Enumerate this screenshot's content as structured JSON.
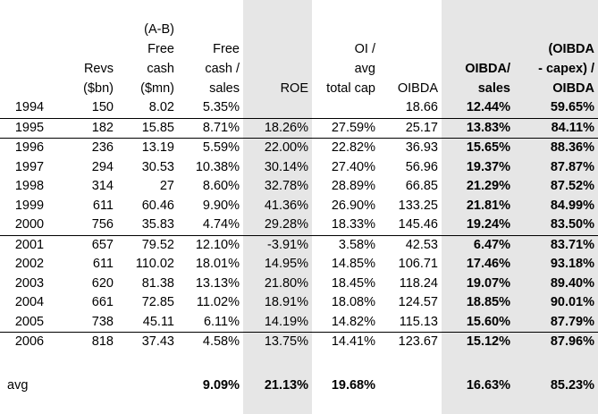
{
  "headers": {
    "year": "",
    "revs": [
      "Revs",
      "($bn)"
    ],
    "free_cash": [
      "(A-B)",
      "Free",
      "cash",
      "($mn)"
    ],
    "free_cash_sales": [
      "Free",
      "cash /",
      "sales"
    ],
    "roe": [
      "ROE"
    ],
    "oi_avg_total_cap": [
      "OI /",
      "avg",
      "total cap"
    ],
    "oibda": [
      "OIBDA"
    ],
    "oibda_sales": [
      "OIBDA/",
      "sales"
    ],
    "oibda_capex": [
      "(OIBDA",
      "- capex) /",
      "OIBDA"
    ]
  },
  "rows": [
    {
      "year": "1994",
      "revs": "150",
      "fc": "8.02",
      "fcs": "5.35%",
      "roe": "",
      "oi": "",
      "oibda": "18.66",
      "os": "12.44%",
      "capex": "59.65%"
    },
    {
      "year": "1995",
      "revs": "182",
      "fc": "15.85",
      "fcs": "8.71%",
      "roe": "18.26%",
      "oi": "27.59%",
      "oibda": "25.17",
      "os": "13.83%",
      "capex": "84.11%"
    },
    {
      "year": "1996",
      "revs": "236",
      "fc": "13.19",
      "fcs": "5.59%",
      "roe": "22.00%",
      "oi": "22.82%",
      "oibda": "36.93",
      "os": "15.65%",
      "capex": "88.36%"
    },
    {
      "year": "1997",
      "revs": "294",
      "fc": "30.53",
      "fcs": "10.38%",
      "roe": "30.14%",
      "oi": "27.40%",
      "oibda": "56.96",
      "os": "19.37%",
      "capex": "87.87%"
    },
    {
      "year": "1998",
      "revs": "314",
      "fc": "27",
      "fcs": "8.60%",
      "roe": "32.78%",
      "oi": "28.89%",
      "oibda": "66.85",
      "os": "21.29%",
      "capex": "87.52%"
    },
    {
      "year": "1999",
      "revs": "611",
      "fc": "60.46",
      "fcs": "9.90%",
      "roe": "41.36%",
      "oi": "26.90%",
      "oibda": "133.25",
      "os": "21.81%",
      "capex": "84.99%"
    },
    {
      "year": "2000",
      "revs": "756",
      "fc": "35.83",
      "fcs": "4.74%",
      "roe": "29.28%",
      "oi": "18.33%",
      "oibda": "145.46",
      "os": "19.24%",
      "capex": "83.50%"
    },
    {
      "year": "2001",
      "revs": "657",
      "fc": "79.52",
      "fcs": "12.10%",
      "roe": "-3.91%",
      "oi": "3.58%",
      "oibda": "42.53",
      "os": "6.47%",
      "capex": "83.71%"
    },
    {
      "year": "2002",
      "revs": "611",
      "fc": "110.02",
      "fcs": "18.01%",
      "roe": "14.95%",
      "oi": "14.85%",
      "oibda": "106.71",
      "os": "17.46%",
      "capex": "93.18%"
    },
    {
      "year": "2003",
      "revs": "620",
      "fc": "81.38",
      "fcs": "13.13%",
      "roe": "21.80%",
      "oi": "18.45%",
      "oibda": "118.24",
      "os": "19.07%",
      "capex": "89.40%"
    },
    {
      "year": "2004",
      "revs": "661",
      "fc": "72.85",
      "fcs": "11.02%",
      "roe": "18.91%",
      "oi": "18.08%",
      "oibda": "124.57",
      "os": "18.85%",
      "capex": "90.01%"
    },
    {
      "year": "2005",
      "revs": "738",
      "fc": "45.11",
      "fcs": "6.11%",
      "roe": "14.19%",
      "oi": "14.82%",
      "oibda": "115.13",
      "os": "15.60%",
      "capex": "87.79%"
    },
    {
      "year": "2006",
      "revs": "818",
      "fc": "37.43",
      "fcs": "4.58%",
      "roe": "13.75%",
      "oi": "14.41%",
      "oibda": "123.67",
      "os": "15.12%",
      "capex": "87.96%"
    }
  ],
  "avg": {
    "label": "avg",
    "fcs": "9.09%",
    "roe": "21.13%",
    "oi": "19.68%",
    "os": "16.63%",
    "capex": "85.23%"
  }
}
